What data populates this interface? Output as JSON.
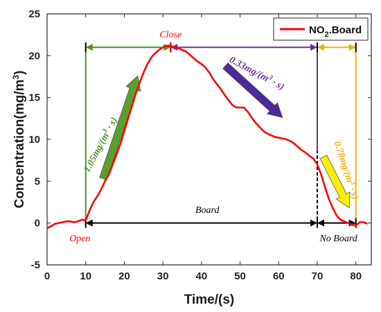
{
  "chart_data": {
    "type": "line",
    "xlabel": "Time/(s)",
    "ylabel_main": "Concentration(mg/m",
    "ylabel_sup": "3",
    "ylabel_end": ")",
    "xlim": [
      0,
      84
    ],
    "ylim": [
      -5,
      25
    ],
    "xticks": [
      0,
      10,
      20,
      30,
      40,
      50,
      60,
      70,
      80
    ],
    "yticks": [
      -5,
      0,
      5,
      10,
      15,
      20,
      25
    ],
    "grid": false,
    "legend": {
      "placement": "top-right",
      "prefix": "NO",
      "sub": "2",
      "suffix": ".Board",
      "color": "#ff0000"
    },
    "series": [
      {
        "color": "#ff0000",
        "x": [
          0,
          1,
          2,
          3,
          4,
          5,
          6,
          7,
          8,
          9,
          10,
          11,
          12,
          13,
          14,
          15,
          16,
          17,
          18,
          19,
          20,
          21,
          22,
          23,
          24,
          25,
          26,
          27,
          28,
          29,
          30,
          31,
          32,
          33,
          34,
          35,
          36,
          37,
          38,
          39,
          40,
          41,
          42,
          43,
          44,
          45,
          46,
          47,
          48,
          49,
          50,
          51,
          52,
          53,
          54,
          55,
          56,
          57,
          58,
          59,
          60,
          61,
          62,
          63,
          64,
          65,
          66,
          67,
          68,
          69,
          70,
          71,
          72,
          73,
          74,
          75,
          76,
          77,
          78,
          79,
          80,
          81,
          82,
          83
        ],
        "y": [
          -0.6,
          -0.4,
          -0.1,
          0.0,
          0.1,
          0.2,
          0.2,
          0.1,
          0.2,
          0.4,
          0.3,
          1.5,
          2.5,
          3.2,
          4.0,
          5.0,
          5.8,
          7.0,
          8.2,
          9.5,
          11.0,
          12.5,
          14.0,
          15.5,
          16.8,
          18.0,
          19.0,
          19.8,
          20.3,
          20.7,
          21.0,
          21.2,
          21.2,
          21.0,
          20.9,
          20.7,
          20.5,
          20.1,
          19.7,
          19.3,
          19.0,
          18.6,
          18.0,
          17.2,
          16.6,
          16.0,
          15.3,
          14.7,
          14.1,
          13.8,
          13.8,
          13.8,
          13.3,
          12.6,
          12.0,
          11.5,
          11.0,
          10.7,
          10.5,
          10.3,
          10.2,
          10.1,
          10.0,
          9.8,
          9.5,
          9.1,
          8.7,
          8.4,
          8.0,
          7.7,
          7.0,
          5.8,
          4.3,
          2.9,
          1.8,
          0.9,
          0.4,
          0.2,
          0.0,
          -0.2,
          -0.3,
          0.1,
          0.1,
          -0.1
        ]
      }
    ],
    "vlines": [
      {
        "x": 10,
        "y0": -0.2,
        "y1": 21.3,
        "color": "#4e8f2b",
        "dash": false
      },
      {
        "x": 70,
        "y0": 8.6,
        "y1": 21.3,
        "color": "#7030a0",
        "dash": false
      },
      {
        "x": 70,
        "y0": -0.3,
        "y1": 8.6,
        "color": "#000000",
        "dash": true
      },
      {
        "x": 80,
        "y0": -0.5,
        "y1": 21.3,
        "color": "#f5b000",
        "dash": false
      }
    ],
    "intervals": [
      {
        "x0": 10,
        "x1": 32,
        "y": 21.0,
        "color": "#4e8f2b"
      },
      {
        "x0": 32,
        "x1": 70,
        "y": 21.0,
        "color": "#7030a0"
      },
      {
        "x0": 70,
        "x1": 80,
        "y": 21.0,
        "color": "#f5b000"
      },
      {
        "x0": 10,
        "x1": 70,
        "y": 0.0,
        "color": "#000000"
      },
      {
        "x0": 70,
        "x1": 80,
        "y": 0.0,
        "color": "#000000"
      }
    ],
    "fat_arrows": [
      {
        "x0": 14.5,
        "y0": 5.3,
        "x1": 23.5,
        "y1": 17.6,
        "color": "#5aa02c"
      },
      {
        "x0": 46.2,
        "y0": 18.8,
        "x1": 61.0,
        "y1": 12.6,
        "color": "#4b2a99"
      },
      {
        "x0": 71.6,
        "y0": 7.9,
        "x1": 78.3,
        "y1": 1.8,
        "color": "#ffee00"
      }
    ],
    "annotations": {
      "close": {
        "text": "Close",
        "x": 32,
        "y": 22.2,
        "color": "#ff0000"
      },
      "open": {
        "text": "Open",
        "x": 8.5,
        "y": -2.2,
        "color": "#ff0000"
      },
      "board": {
        "text": "Board",
        "x": 41.5,
        "y": 1.2,
        "color": "#000000"
      },
      "no_board": {
        "text": "No Board",
        "x": 75.5,
        "y": -2.2,
        "color": "#000000"
      },
      "rate_green": {
        "num": "1.05mg/(m",
        "sup": "3",
        "end": " · s)",
        "x": 14.5,
        "y": 9.2,
        "angle": -62,
        "color": "#4e8f2b"
      },
      "rate_purple": {
        "num": "0.33mg/(m",
        "sup": "3",
        "end": " · s)",
        "x": 54.0,
        "y": 17.6,
        "angle": 28,
        "color": "#7030a0"
      },
      "rate_yellow": {
        "num": "0.78mg/(m",
        "sup": "3",
        "end": " · s)",
        "x": 76.8,
        "y": 6.2,
        "angle": 72,
        "color": "#f5b000"
      }
    }
  }
}
